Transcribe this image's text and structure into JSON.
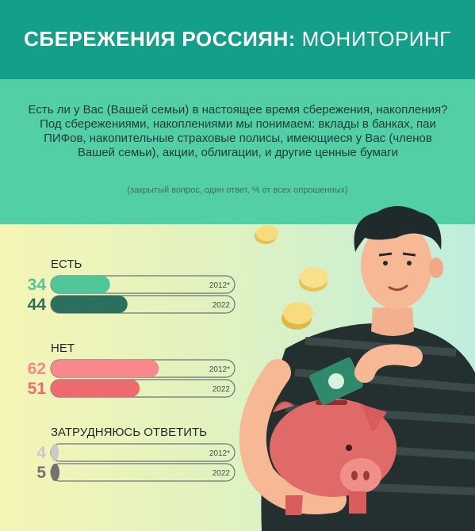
{
  "header": {
    "title_bold": "СБЕРЕЖЕНИЯ РОССИЯН:",
    "title_light": "МОНИТОРИНГ"
  },
  "question": "Есть ли у Вас (Вашей семьи) в настоящее время сбережения, накопления? Под сбережениями, накоплениями мы понимаем: вклады в банках, паи ПИФов, накопительные страховые полисы, имеющиеся у Вас (членов Вашей семьи), акции, облигации, и другие ценные бумаги",
  "note": "(закрытый вопрос, один ответ, % от всех опрошенных)",
  "colors": {
    "header": "#139f8a",
    "panel": "#52cfa5",
    "yes_2012": "#4fc79a",
    "yes_2022": "#2b6f5f",
    "no_2012": "#f7898c",
    "no_2022": "#ef6a6f",
    "dk_2012": "#c9c9c9",
    "dk_2022": "#727272"
  },
  "chart_data": {
    "type": "bar",
    "orientation": "horizontal",
    "unit": "%",
    "groups": [
      {
        "label": "ЕСТЬ",
        "bars": [
          {
            "year": "2012*",
            "value": 34
          },
          {
            "year": "2022",
            "value": 44
          }
        ]
      },
      {
        "label": "НЕТ",
        "bars": [
          {
            "year": "2012*",
            "value": 62
          },
          {
            "year": "2022",
            "value": 51
          }
        ]
      },
      {
        "label": "ЗАТРУДНЯЮСЬ ОТВЕТИТЬ",
        "bars": [
          {
            "year": "2012*",
            "value": 4
          },
          {
            "year": "2022",
            "value": 5
          }
        ]
      }
    ],
    "xlim": [
      0,
      100
    ]
  }
}
